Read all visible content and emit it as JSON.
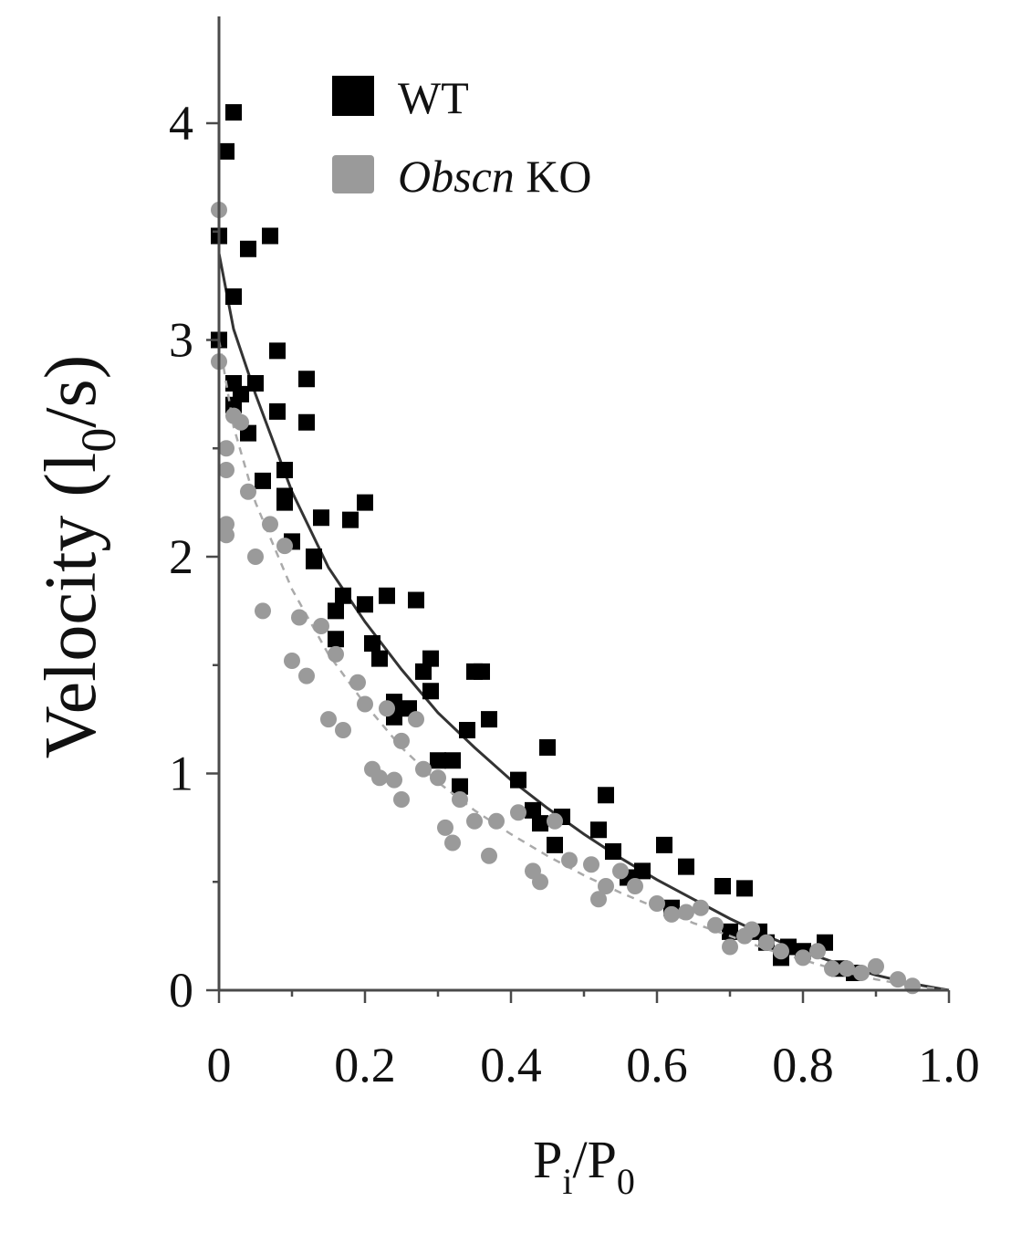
{
  "chart_data": {
    "type": "scatter",
    "xlabel": {
      "base": "P",
      "sub": "i",
      "sep": "/",
      "base2": "P",
      "sub2": "0"
    },
    "ylabel": {
      "pre": "Velocity (l",
      "sub": "0",
      "post": "/s)"
    },
    "xlim": [
      0,
      1.0
    ],
    "ylim": [
      0,
      4.5
    ],
    "x_ticks": [
      "0",
      "0.2",
      "0.4",
      "0.6",
      "0.8",
      "1.0"
    ],
    "x_tick_values": [
      0,
      0.2,
      0.4,
      0.6,
      0.8,
      1.0
    ],
    "y_ticks": [
      "0",
      "1",
      "2",
      "3",
      "4"
    ],
    "y_tick_values": [
      0,
      1,
      2,
      3,
      4
    ],
    "y_minor_ticks": [
      0.5,
      1.5,
      2.5,
      3.5
    ],
    "x_minor_ticks": [
      0.1,
      0.3,
      0.5,
      0.7,
      0.9
    ],
    "grid": false,
    "legend_position": "top-left",
    "series": [
      {
        "name": "WT",
        "name_italic": "",
        "marker": "square",
        "color": "#000000",
        "fit_style": "solid",
        "fit_color": "#333333",
        "fit_points": [
          [
            0.0,
            3.4
          ],
          [
            0.02,
            3.05
          ],
          [
            0.05,
            2.75
          ],
          [
            0.1,
            2.3
          ],
          [
            0.15,
            1.95
          ],
          [
            0.2,
            1.7
          ],
          [
            0.25,
            1.48
          ],
          [
            0.3,
            1.28
          ],
          [
            0.35,
            1.12
          ],
          [
            0.4,
            0.97
          ],
          [
            0.45,
            0.84
          ],
          [
            0.5,
            0.72
          ],
          [
            0.55,
            0.61
          ],
          [
            0.6,
            0.51
          ],
          [
            0.65,
            0.42
          ],
          [
            0.7,
            0.33
          ],
          [
            0.75,
            0.25
          ],
          [
            0.8,
            0.18
          ],
          [
            0.85,
            0.12
          ],
          [
            0.9,
            0.07
          ],
          [
            0.95,
            0.03
          ],
          [
            1.0,
            0.0
          ]
        ],
        "points": [
          [
            0.0,
            3.48
          ],
          [
            0.0,
            3.0
          ],
          [
            0.01,
            3.87
          ],
          [
            0.02,
            4.05
          ],
          [
            0.02,
            3.2
          ],
          [
            0.02,
            2.8
          ],
          [
            0.02,
            2.7
          ],
          [
            0.03,
            2.75
          ],
          [
            0.04,
            3.42
          ],
          [
            0.04,
            2.57
          ],
          [
            0.05,
            2.8
          ],
          [
            0.06,
            2.35
          ],
          [
            0.07,
            3.48
          ],
          [
            0.08,
            2.95
          ],
          [
            0.08,
            2.67
          ],
          [
            0.09,
            2.4
          ],
          [
            0.09,
            2.28
          ],
          [
            0.09,
            2.25
          ],
          [
            0.1,
            2.07
          ],
          [
            0.12,
            2.82
          ],
          [
            0.12,
            2.62
          ],
          [
            0.13,
            1.98
          ],
          [
            0.13,
            2.0
          ],
          [
            0.14,
            2.18
          ],
          [
            0.16,
            1.75
          ],
          [
            0.16,
            1.62
          ],
          [
            0.17,
            1.82
          ],
          [
            0.18,
            2.17
          ],
          [
            0.2,
            2.25
          ],
          [
            0.2,
            1.78
          ],
          [
            0.21,
            1.6
          ],
          [
            0.22,
            1.53
          ],
          [
            0.23,
            1.82
          ],
          [
            0.24,
            1.33
          ],
          [
            0.24,
            1.26
          ],
          [
            0.26,
            1.3
          ],
          [
            0.27,
            1.8
          ],
          [
            0.28,
            1.47
          ],
          [
            0.29,
            1.53
          ],
          [
            0.29,
            1.38
          ],
          [
            0.3,
            1.06
          ],
          [
            0.32,
            1.06
          ],
          [
            0.33,
            0.94
          ],
          [
            0.34,
            1.2
          ],
          [
            0.35,
            1.47
          ],
          [
            0.36,
            1.47
          ],
          [
            0.37,
            1.25
          ],
          [
            0.41,
            0.97
          ],
          [
            0.43,
            0.83
          ],
          [
            0.44,
            0.77
          ],
          [
            0.45,
            1.12
          ],
          [
            0.46,
            0.67
          ],
          [
            0.47,
            0.8
          ],
          [
            0.52,
            0.74
          ],
          [
            0.53,
            0.9
          ],
          [
            0.54,
            0.64
          ],
          [
            0.56,
            0.52
          ],
          [
            0.58,
            0.55
          ],
          [
            0.61,
            0.67
          ],
          [
            0.62,
            0.38
          ],
          [
            0.64,
            0.57
          ],
          [
            0.69,
            0.48
          ],
          [
            0.7,
            0.27
          ],
          [
            0.72,
            0.47
          ],
          [
            0.74,
            0.27
          ],
          [
            0.75,
            0.22
          ],
          [
            0.77,
            0.15
          ],
          [
            0.78,
            0.2
          ],
          [
            0.8,
            0.18
          ],
          [
            0.83,
            0.22
          ],
          [
            0.85,
            0.1
          ],
          [
            0.87,
            0.08
          ]
        ]
      },
      {
        "name": "KO",
        "name_italic": "Obscn",
        "marker": "circle",
        "color": "#9a9a9a",
        "fit_style": "dashed",
        "fit_color": "#aaaaaa",
        "fit_points": [
          [
            0.0,
            3.0
          ],
          [
            0.02,
            2.6
          ],
          [
            0.05,
            2.25
          ],
          [
            0.1,
            1.85
          ],
          [
            0.15,
            1.55
          ],
          [
            0.2,
            1.32
          ],
          [
            0.25,
            1.12
          ],
          [
            0.3,
            0.96
          ],
          [
            0.35,
            0.83
          ],
          [
            0.4,
            0.72
          ],
          [
            0.45,
            0.62
          ],
          [
            0.5,
            0.53
          ],
          [
            0.55,
            0.45
          ],
          [
            0.6,
            0.38
          ],
          [
            0.65,
            0.31
          ],
          [
            0.7,
            0.25
          ],
          [
            0.75,
            0.19
          ],
          [
            0.8,
            0.14
          ],
          [
            0.85,
            0.09
          ],
          [
            0.9,
            0.05
          ],
          [
            0.95,
            0.02
          ],
          [
            1.0,
            0.0
          ]
        ],
        "points": [
          [
            0.0,
            3.6
          ],
          [
            0.0,
            2.9
          ],
          [
            0.01,
            2.5
          ],
          [
            0.01,
            2.4
          ],
          [
            0.01,
            2.15
          ],
          [
            0.01,
            2.1
          ],
          [
            0.02,
            2.65
          ],
          [
            0.03,
            2.62
          ],
          [
            0.04,
            2.3
          ],
          [
            0.05,
            2.0
          ],
          [
            0.06,
            1.75
          ],
          [
            0.07,
            2.15
          ],
          [
            0.09,
            2.05
          ],
          [
            0.1,
            1.52
          ],
          [
            0.11,
            1.72
          ],
          [
            0.12,
            1.45
          ],
          [
            0.14,
            1.68
          ],
          [
            0.15,
            1.25
          ],
          [
            0.16,
            1.55
          ],
          [
            0.17,
            1.2
          ],
          [
            0.19,
            1.42
          ],
          [
            0.2,
            1.32
          ],
          [
            0.21,
            1.02
          ],
          [
            0.22,
            0.98
          ],
          [
            0.23,
            1.3
          ],
          [
            0.24,
            0.97
          ],
          [
            0.25,
            1.15
          ],
          [
            0.25,
            0.88
          ],
          [
            0.27,
            1.25
          ],
          [
            0.28,
            1.02
          ],
          [
            0.3,
            0.98
          ],
          [
            0.31,
            0.75
          ],
          [
            0.32,
            0.68
          ],
          [
            0.33,
            0.88
          ],
          [
            0.35,
            0.78
          ],
          [
            0.37,
            0.62
          ],
          [
            0.38,
            0.78
          ],
          [
            0.41,
            0.82
          ],
          [
            0.43,
            0.55
          ],
          [
            0.44,
            0.5
          ],
          [
            0.46,
            0.78
          ],
          [
            0.48,
            0.6
          ],
          [
            0.51,
            0.58
          ],
          [
            0.52,
            0.42
          ],
          [
            0.53,
            0.48
          ],
          [
            0.55,
            0.55
          ],
          [
            0.57,
            0.48
          ],
          [
            0.6,
            0.4
          ],
          [
            0.62,
            0.35
          ],
          [
            0.64,
            0.36
          ],
          [
            0.66,
            0.38
          ],
          [
            0.68,
            0.3
          ],
          [
            0.7,
            0.2
          ],
          [
            0.72,
            0.25
          ],
          [
            0.73,
            0.28
          ],
          [
            0.75,
            0.22
          ],
          [
            0.77,
            0.18
          ],
          [
            0.8,
            0.15
          ],
          [
            0.82,
            0.18
          ],
          [
            0.84,
            0.1
          ],
          [
            0.86,
            0.1
          ],
          [
            0.88,
            0.08
          ],
          [
            0.9,
            0.11
          ],
          [
            0.93,
            0.05
          ],
          [
            0.95,
            0.02
          ]
        ]
      }
    ]
  }
}
